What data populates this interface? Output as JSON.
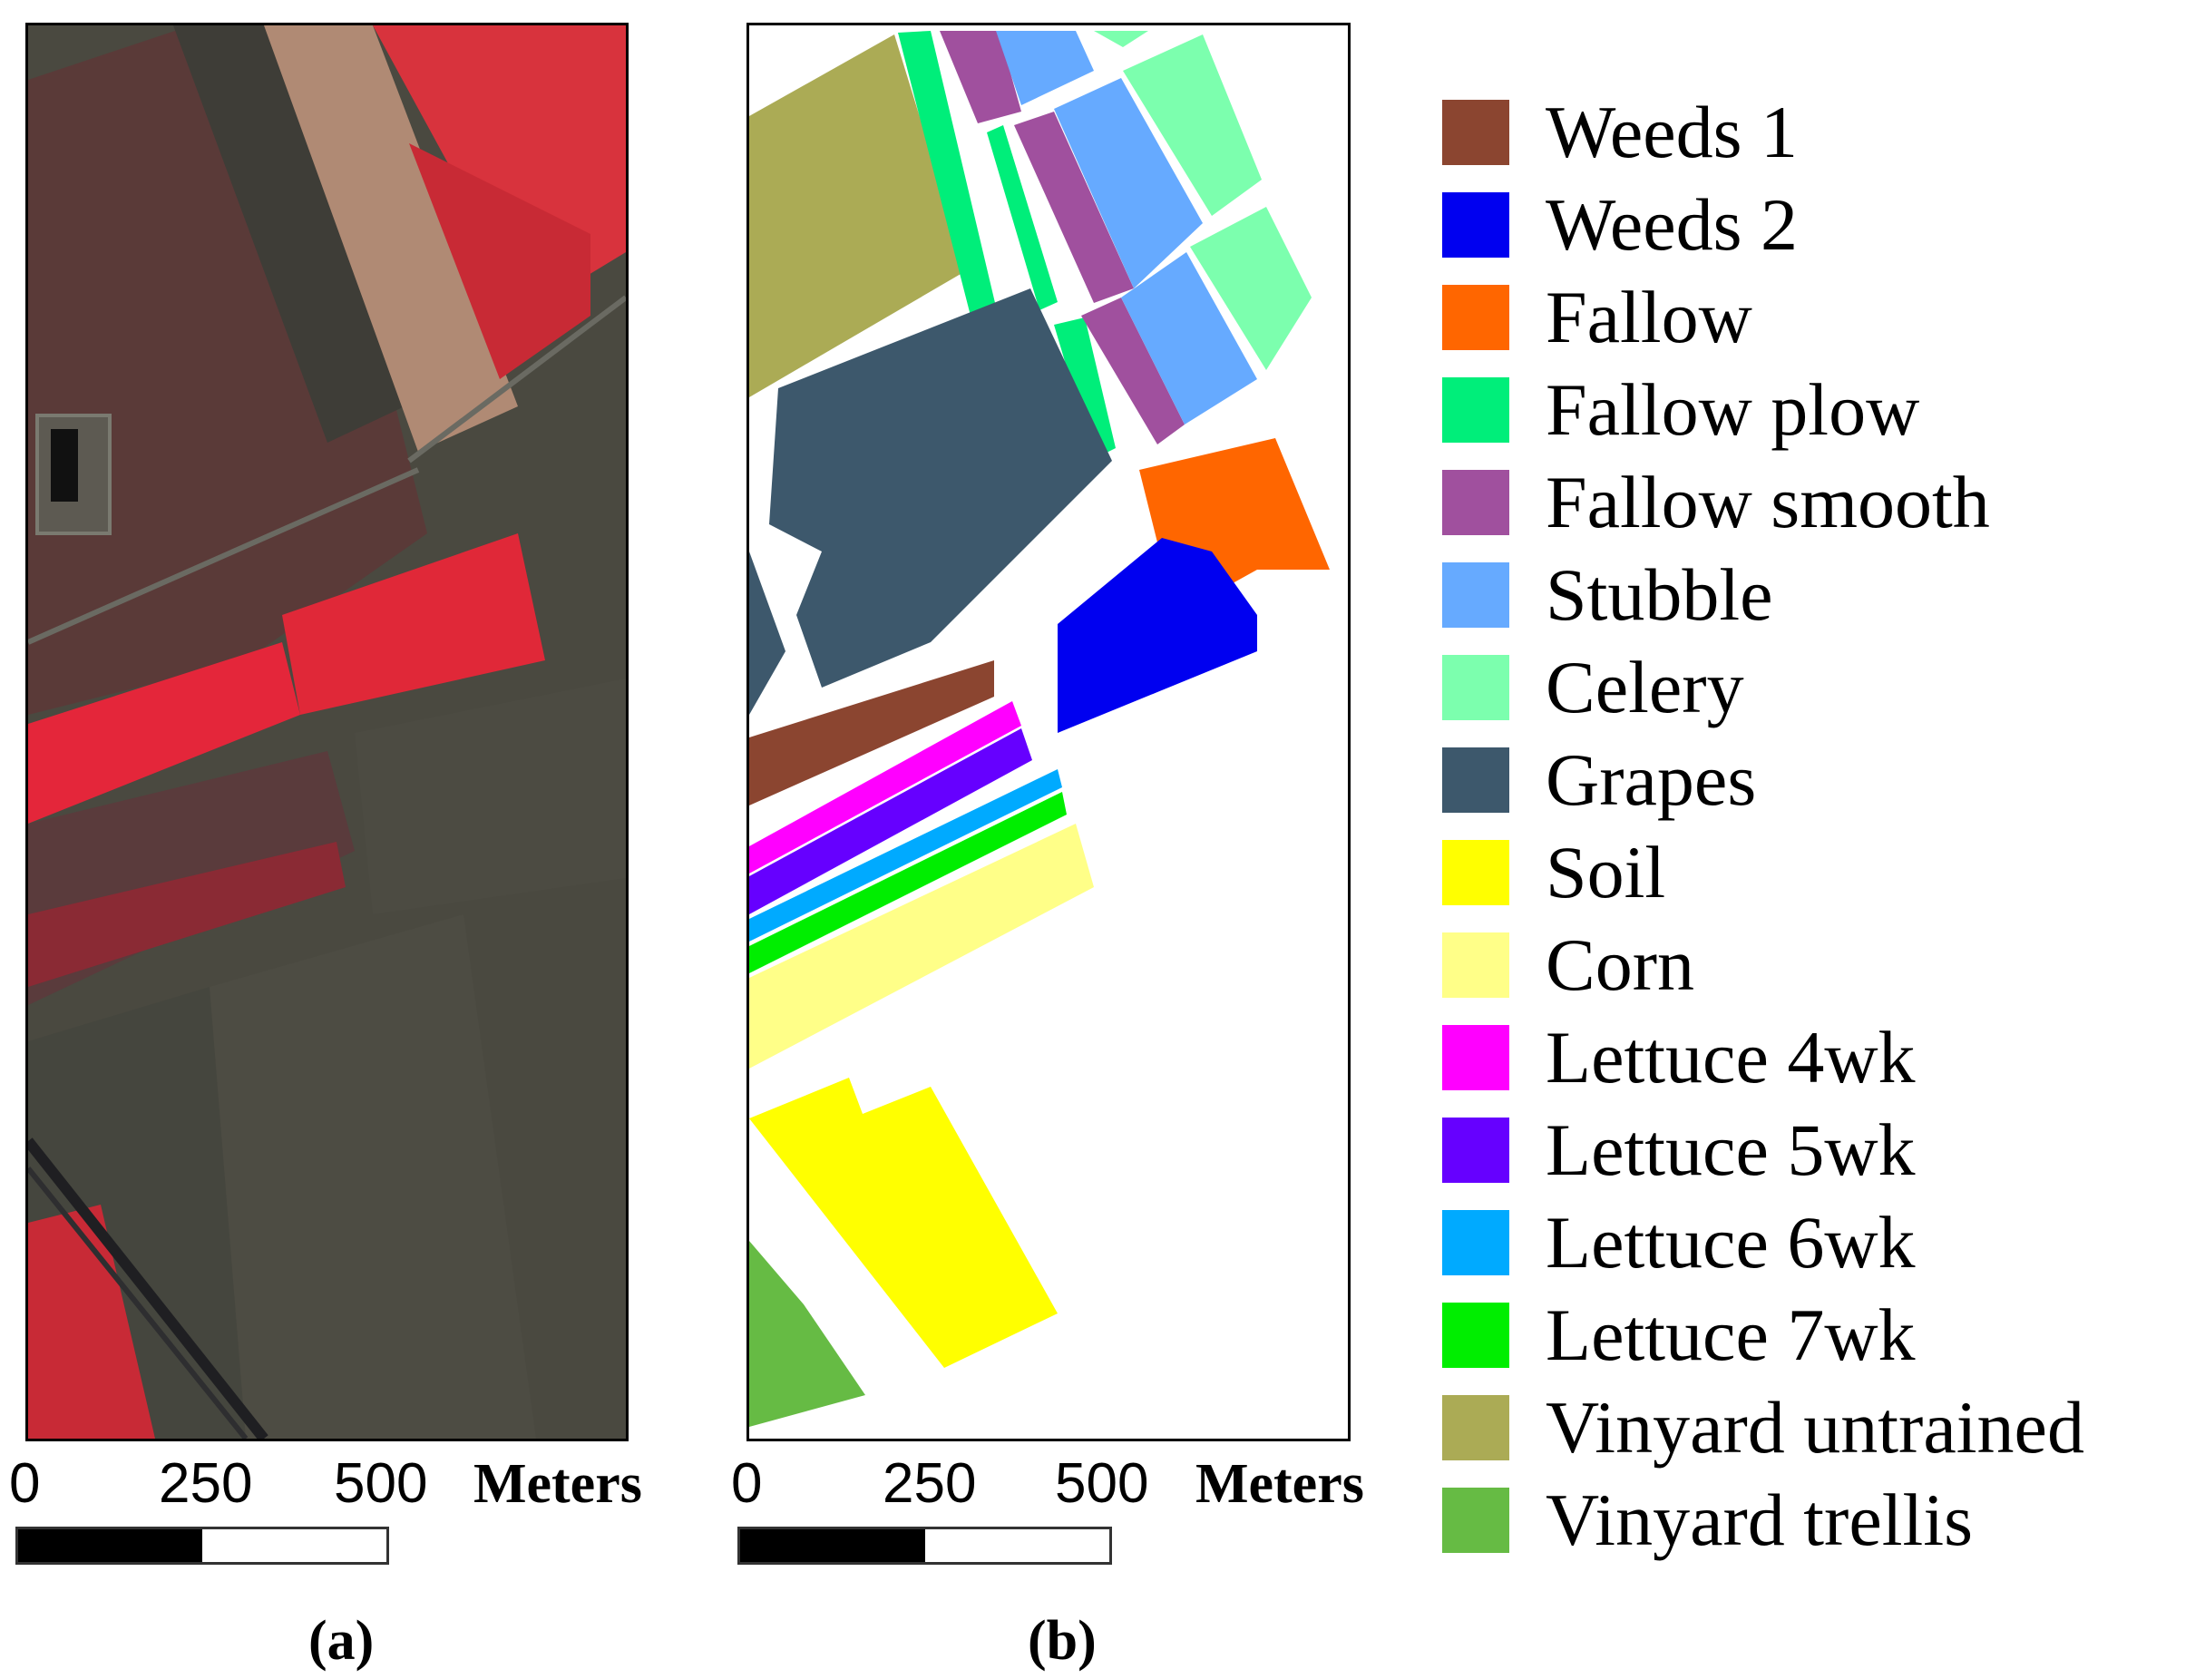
{
  "panels": {
    "a": {
      "label": "(a)",
      "scale": {
        "ticks": [
          "0",
          "250",
          "500"
        ],
        "unit": "Meters"
      }
    },
    "b": {
      "label": "(b)",
      "scale": {
        "ticks": [
          "0",
          "250",
          "500"
        ],
        "unit": "Meters"
      }
    }
  },
  "legend": [
    {
      "label": "Weeds 1",
      "color": "#8b4530"
    },
    {
      "label": "Weeds 2",
      "color": "#0000f0"
    },
    {
      "label": "Fallow",
      "color": "#ff6600"
    },
    {
      "label": "Fallow plow",
      "color": "#00ee7a"
    },
    {
      "label": "Fallow smooth",
      "color": "#a0509e"
    },
    {
      "label": "Stubble",
      "color": "#66aaff"
    },
    {
      "label": "Celery",
      "color": "#7cffae"
    },
    {
      "label": "Grapes",
      "color": "#3d586c"
    },
    {
      "label": "Soil",
      "color": "#ffff00"
    },
    {
      "label": "Corn",
      "color": "#ffff88"
    },
    {
      "label": "Lettuce 4wk",
      "color": "#ff00ff"
    },
    {
      "label": "Lettuce 5wk",
      "color": "#6600ff"
    },
    {
      "label": "Lettuce 6wk",
      "color": "#00aaff"
    },
    {
      "label": "Lettuce 7wk",
      "color": "#00ee00"
    },
    {
      "label": "Vinyard untrained",
      "color": "#abab55"
    },
    {
      "label": "Vinyard trellis",
      "color": "#66bb44"
    }
  ]
}
